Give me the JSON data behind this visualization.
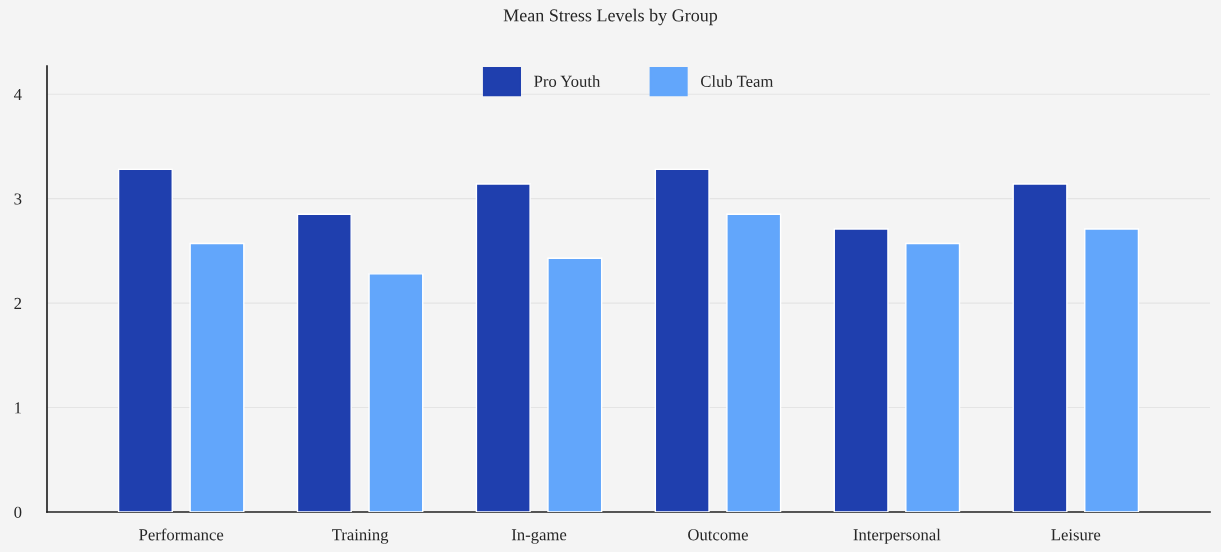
{
  "chart_data": {
    "type": "bar",
    "title": "Mean Stress Levels by Group",
    "categories": [
      "Performance",
      "Training",
      "In-game",
      "Outcome",
      "Interpersonal",
      "Leisure"
    ],
    "series": [
      {
        "name": "Pro Youth",
        "color": "#1f3fae",
        "values": [
          3.28,
          2.85,
          3.14,
          3.28,
          2.71,
          3.14
        ]
      },
      {
        "name": "Club Team",
        "color": "#62a6fb",
        "values": [
          2.57,
          2.28,
          2.43,
          2.85,
          2.57,
          2.71
        ]
      }
    ],
    "ylim": [
      0,
      4.27
    ],
    "yticks": [
      0,
      1,
      2,
      3,
      4
    ],
    "grid": "y",
    "legend": "top"
  }
}
